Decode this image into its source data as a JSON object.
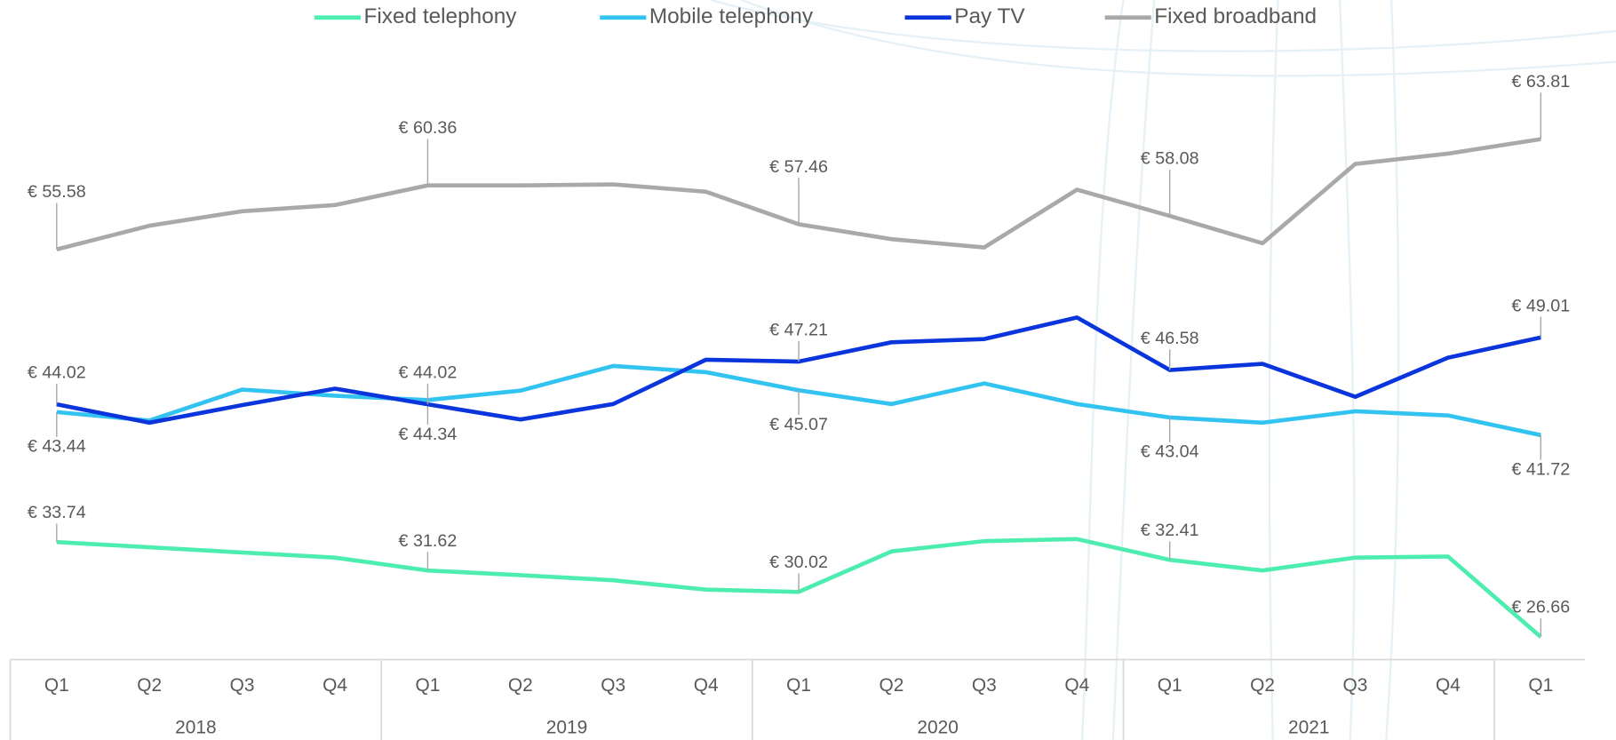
{
  "chart_data": {
    "type": "line",
    "categories": [
      "Q1",
      "Q2",
      "Q3",
      "Q4",
      "Q1",
      "Q2",
      "Q3",
      "Q4",
      "Q1",
      "Q2",
      "Q3",
      "Q4",
      "Q1",
      "Q2",
      "Q3",
      "Q4",
      "Q1"
    ],
    "groups": [
      "2018",
      "2019",
      "2020",
      "2021"
    ],
    "legend": "top",
    "series": [
      {
        "name": "Fixed telephony",
        "color": "#4ded b0",
        "values": [
          33.74,
          33.35,
          32.96,
          32.58,
          31.62,
          31.27,
          30.89,
          30.19,
          30.02,
          33.04,
          33.81,
          33.96,
          32.41,
          31.62,
          32.58,
          32.66,
          26.66
        ],
        "value_labels": [
          "€ 33.74",
          null,
          null,
          null,
          "€ 31.62",
          null,
          null,
          null,
          "€ 30.02",
          null,
          null,
          null,
          "€ 32.41",
          null,
          null,
          null,
          "€ 26.66"
        ]
      },
      {
        "name": "Mobile telephony",
        "color": "#33c3f0",
        "values": [
          43.44,
          42.81,
          45.12,
          44.66,
          44.34,
          45.04,
          46.88,
          46.42,
          45.07,
          44.04,
          45.58,
          44.04,
          43.04,
          42.65,
          43.5,
          43.19,
          41.72
        ],
        "value_labels": [
          "€ 43.44",
          null,
          null,
          null,
          "€ 44.34",
          null,
          null,
          null,
          "€ 45.07",
          null,
          null,
          null,
          "€ 43.04",
          null,
          null,
          null,
          "€ 41.72"
        ]
      },
      {
        "name": "Pay TV",
        "color": "#0a35dc",
        "values": [
          44.02,
          42.65,
          43.96,
          45.19,
          44.02,
          42.89,
          44.04,
          47.35,
          47.21,
          48.65,
          48.89,
          50.5,
          46.58,
          47.04,
          44.58,
          47.5,
          49.01
        ],
        "value_labels": [
          "€ 44.02",
          null,
          null,
          null,
          "€ 44.02",
          null,
          null,
          null,
          "€ 47.21",
          null,
          null,
          null,
          "€ 46.58",
          null,
          null,
          null,
          "€ 49.01"
        ]
      },
      {
        "name": "Fixed broadband",
        "color": "#a9a9a9",
        "values": [
          55.58,
          57.35,
          58.43,
          58.89,
          60.36,
          60.36,
          60.43,
          59.89,
          57.46,
          56.35,
          55.73,
          60.04,
          58.08,
          56.04,
          61.96,
          62.73,
          63.81
        ],
        "value_labels": [
          "€ 55.58",
          null,
          null,
          null,
          "€ 60.36",
          null,
          null,
          null,
          "€ 57.46",
          null,
          null,
          null,
          "€ 58.08",
          null,
          null,
          null,
          "€ 63.81"
        ]
      }
    ]
  }
}
